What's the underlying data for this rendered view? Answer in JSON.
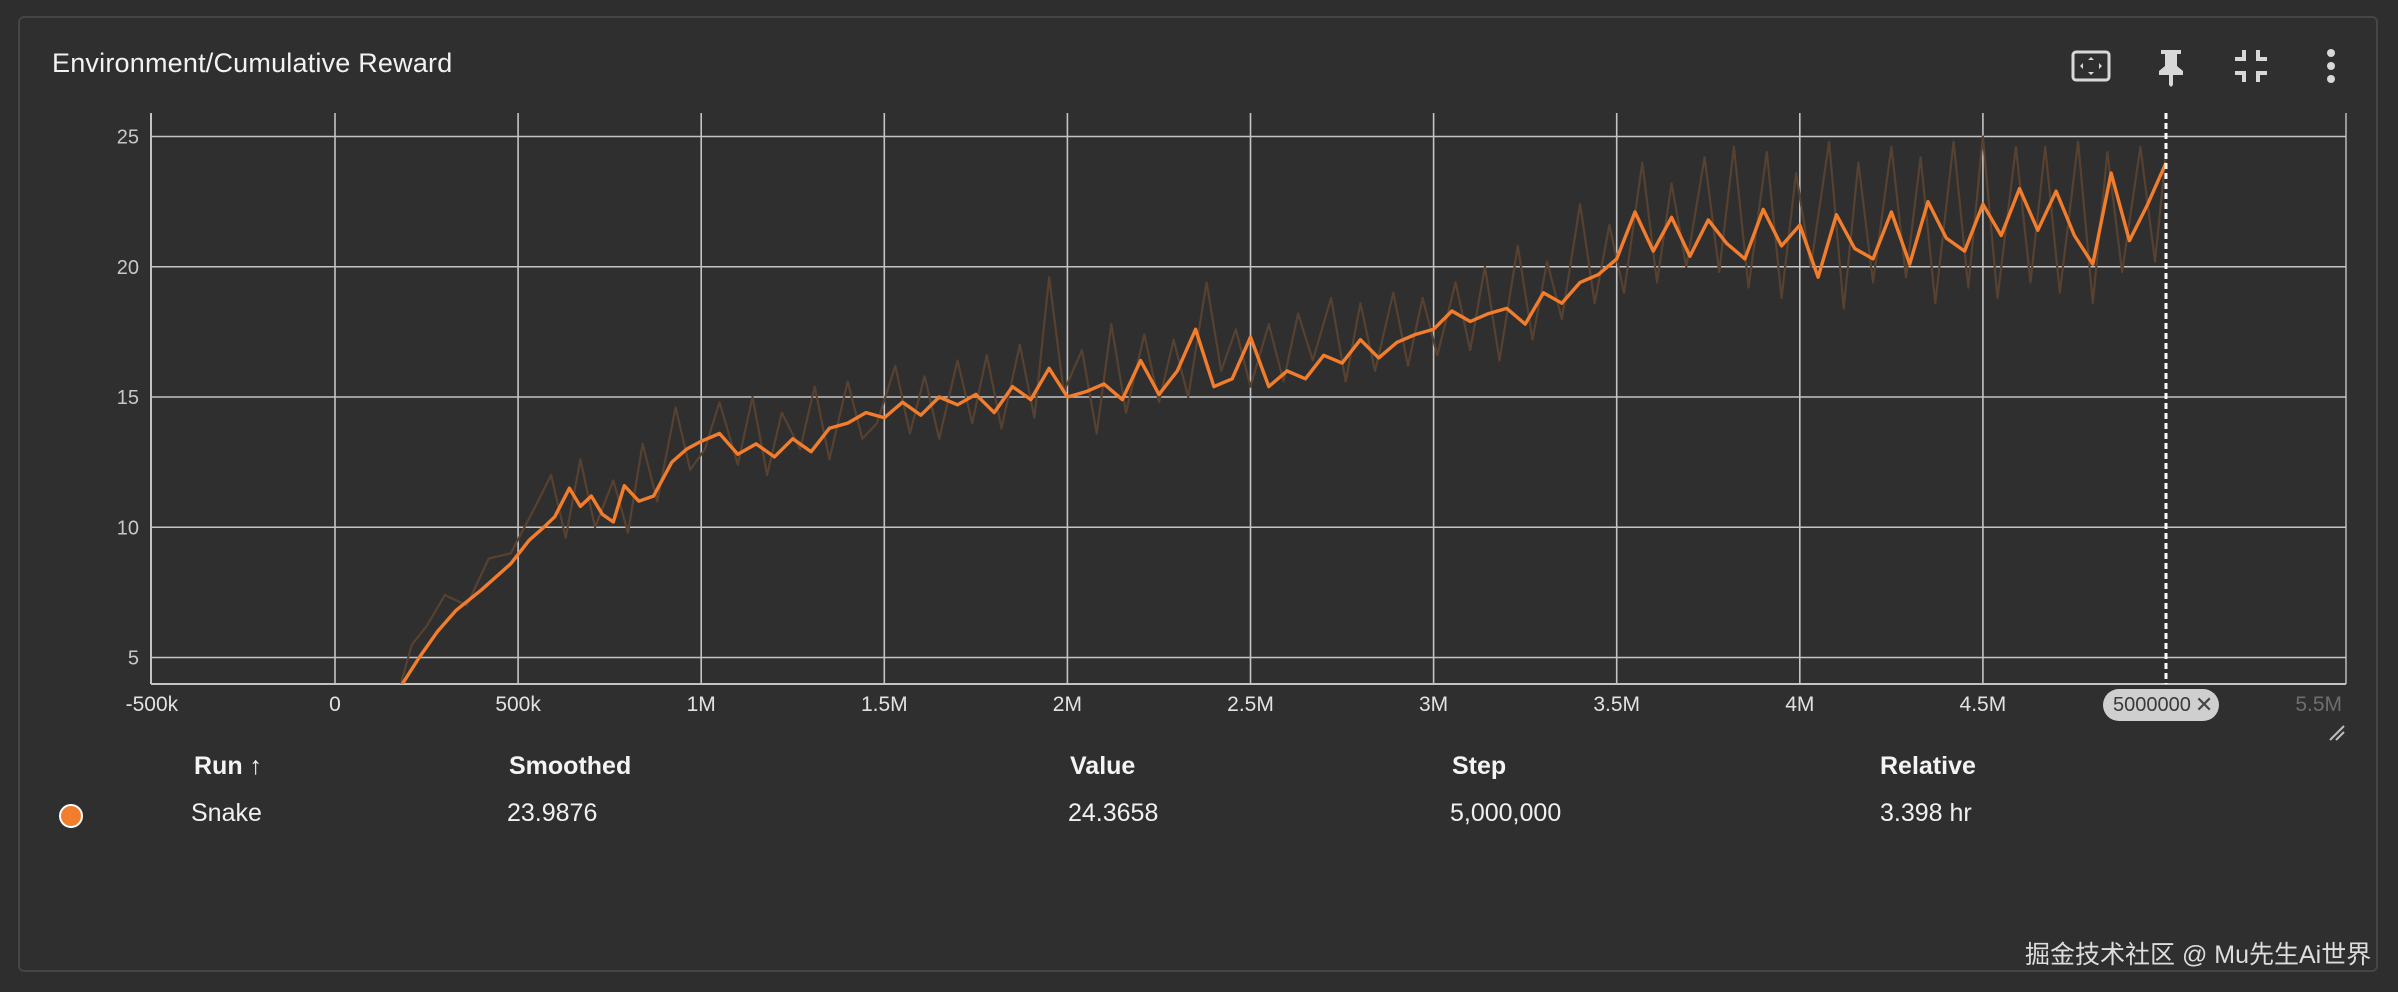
{
  "header": {
    "title": "Environment/Cumulative Reward",
    "icons": [
      "fit-to-domain-icon",
      "pin-icon",
      "collapse-icon",
      "more-vert-icon"
    ]
  },
  "colors": {
    "series": "#f27d2d",
    "raw": "#574130",
    "grid": "#c4c4c4",
    "background": "#2f2f2f",
    "cursor": "#ffffff"
  },
  "cursor_chip": {
    "label": "5000000",
    "close": "✕"
  },
  "table": {
    "headers": {
      "run": "Run ↑",
      "smoothed": "Smoothed",
      "value": "Value",
      "step": "Step",
      "relative": "Relative"
    },
    "row": {
      "run": "Snake",
      "smoothed": "23.9876",
      "value": "24.3658",
      "step": "5,000,000",
      "relative": "3.398 hr"
    }
  },
  "watermark": "掘金技术社区 @ Mu先生Ai世界",
  "chart_data": {
    "type": "line",
    "title": "Environment/Cumulative Reward",
    "xlabel": "",
    "ylabel": "",
    "xlim": [
      -500000,
      5100000
    ],
    "ylim": [
      4,
      26
    ],
    "x_ticks": [
      {
        "value": -500000,
        "label": "-500k"
      },
      {
        "value": 0,
        "label": "0"
      },
      {
        "value": 500000,
        "label": "500k"
      },
      {
        "value": 1000000,
        "label": "1M"
      },
      {
        "value": 1500000,
        "label": "1.5M"
      },
      {
        "value": 2000000,
        "label": "2M"
      },
      {
        "value": 2500000,
        "label": "2.5M"
      },
      {
        "value": 3000000,
        "label": "3M"
      },
      {
        "value": 3500000,
        "label": "3.5M"
      },
      {
        "value": 4000000,
        "label": "4M"
      },
      {
        "value": 4500000,
        "label": "4.5M"
      },
      {
        "value": 5500000,
        "label": "5.5M"
      }
    ],
    "y_ticks": [
      5,
      10,
      15,
      20,
      25
    ],
    "grid": true,
    "cursor_step": 5000000,
    "series": [
      {
        "name": "Snake",
        "kind": "smoothed",
        "x": [
          180000,
          230000,
          280000,
          330000,
          400000,
          480000,
          530000,
          570000,
          600000,
          640000,
          670000,
          700000,
          730000,
          760000,
          790000,
          830000,
          870000,
          920000,
          960000,
          1000000,
          1050000,
          1100000,
          1150000,
          1200000,
          1250000,
          1300000,
          1350000,
          1400000,
          1450000,
          1500000,
          1550000,
          1600000,
          1650000,
          1700000,
          1750000,
          1800000,
          1850000,
          1900000,
          1950000,
          2000000,
          2050000,
          2100000,
          2150000,
          2200000,
          2250000,
          2300000,
          2350000,
          2400000,
          2450000,
          2500000,
          2550000,
          2600000,
          2650000,
          2700000,
          2750000,
          2800000,
          2850000,
          2900000,
          2950000,
          3000000,
          3050000,
          3100000,
          3150000,
          3200000,
          3250000,
          3300000,
          3350000,
          3400000,
          3450000,
          3500000,
          3550000,
          3600000,
          3650000,
          3700000,
          3750000,
          3800000,
          3850000,
          3900000,
          3950000,
          4000000,
          4050000,
          4100000,
          4150000,
          4200000,
          4250000,
          4300000,
          4350000,
          4400000,
          4450000,
          4500000,
          4550000,
          4600000,
          4650000,
          4700000,
          4750000,
          4800000,
          4850000,
          4900000,
          4950000,
          5000000
        ],
        "values": [
          3.9,
          5.0,
          6.0,
          6.8,
          7.6,
          8.6,
          9.5,
          10.0,
          10.4,
          11.5,
          10.8,
          11.2,
          10.5,
          10.2,
          11.6,
          11.0,
          11.2,
          12.5,
          13.0,
          13.3,
          13.6,
          12.8,
          13.2,
          12.7,
          13.4,
          12.9,
          13.8,
          14.0,
          14.4,
          14.2,
          14.8,
          14.3,
          15.0,
          14.7,
          15.1,
          14.4,
          15.4,
          14.9,
          16.1,
          15.0,
          15.2,
          15.5,
          14.9,
          16.4,
          15.1,
          16.0,
          17.6,
          15.4,
          15.7,
          17.3,
          15.4,
          16.0,
          15.7,
          16.6,
          16.3,
          17.2,
          16.5,
          17.1,
          17.4,
          17.6,
          18.3,
          17.9,
          18.2,
          18.4,
          17.8,
          19.0,
          18.6,
          19.4,
          19.7,
          20.3,
          22.1,
          20.6,
          21.9,
          20.4,
          21.8,
          20.9,
          20.3,
          22.2,
          20.8,
          21.6,
          19.6,
          22.0,
          20.7,
          20.3,
          22.1,
          20.1,
          22.5,
          21.1,
          20.6,
          22.4,
          21.2,
          23.0,
          21.4,
          22.9,
          21.2,
          20.1,
          23.6,
          21.0,
          22.4,
          23.9876
        ]
      },
      {
        "name": "Snake",
        "kind": "raw",
        "x": [
          180000,
          210000,
          250000,
          300000,
          360000,
          420000,
          480000,
          540000,
          590000,
          630000,
          670000,
          710000,
          760000,
          800000,
          840000,
          880000,
          930000,
          970000,
          1010000,
          1050000,
          1100000,
          1140000,
          1180000,
          1220000,
          1270000,
          1310000,
          1350000,
          1400000,
          1440000,
          1480000,
          1530000,
          1570000,
          1610000,
          1650000,
          1700000,
          1740000,
          1780000,
          1820000,
          1870000,
          1910000,
          1950000,
          1990000,
          2040000,
          2080000,
          2120000,
          2160000,
          2210000,
          2250000,
          2290000,
          2330000,
          2380000,
          2420000,
          2460000,
          2500000,
          2550000,
          2590000,
          2630000,
          2670000,
          2720000,
          2760000,
          2800000,
          2840000,
          2890000,
          2930000,
          2970000,
          3010000,
          3060000,
          3100000,
          3140000,
          3180000,
          3230000,
          3270000,
          3310000,
          3350000,
          3400000,
          3440000,
          3480000,
          3520000,
          3570000,
          3610000,
          3650000,
          3690000,
          3740000,
          3780000,
          3820000,
          3860000,
          3910000,
          3950000,
          3990000,
          4030000,
          4080000,
          4120000,
          4160000,
          4200000,
          4250000,
          4290000,
          4330000,
          4370000,
          4420000,
          4460000,
          4500000,
          4540000,
          4590000,
          4630000,
          4670000,
          4710000,
          4760000,
          4800000,
          4840000,
          4880000,
          4930000,
          4970000,
          5000000
        ],
        "values": [
          4.0,
          5.5,
          6.2,
          7.4,
          7.0,
          8.8,
          9.0,
          10.6,
          12.0,
          9.6,
          12.6,
          10.0,
          11.8,
          9.8,
          13.2,
          11.0,
          14.6,
          12.2,
          13.0,
          14.8,
          12.4,
          15.0,
          12.0,
          14.4,
          13.0,
          15.4,
          12.6,
          15.6,
          13.4,
          14.0,
          16.2,
          13.6,
          15.8,
          13.4,
          16.4,
          14.0,
          16.6,
          13.8,
          17.0,
          14.2,
          19.6,
          15.2,
          16.8,
          13.6,
          17.8,
          14.4,
          17.4,
          14.8,
          17.2,
          15.0,
          19.4,
          16.0,
          17.6,
          15.4,
          17.8,
          15.6,
          18.2,
          16.4,
          18.8,
          15.6,
          18.6,
          16.0,
          19.0,
          16.2,
          18.8,
          16.6,
          19.4,
          16.8,
          20.0,
          16.4,
          20.8,
          17.2,
          20.2,
          18.0,
          22.4,
          18.6,
          21.6,
          19.0,
          24.0,
          19.4,
          23.2,
          20.0,
          24.2,
          19.8,
          24.6,
          19.2,
          24.4,
          18.8,
          23.6,
          20.0,
          24.8,
          18.4,
          24.0,
          19.4,
          24.6,
          19.6,
          24.2,
          18.6,
          24.8,
          19.2,
          25.0,
          18.8,
          24.6,
          19.4,
          24.6,
          19.0,
          24.8,
          18.6,
          24.4,
          19.8,
          24.6,
          20.2,
          24.3658
        ]
      }
    ]
  }
}
